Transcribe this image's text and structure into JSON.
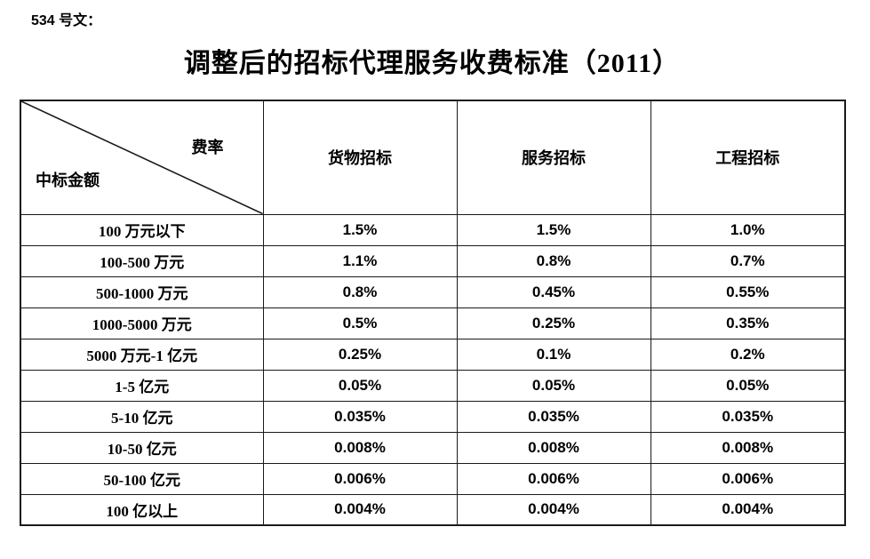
{
  "page": {
    "doc_label": "534 号文：",
    "title": "调整后的招标代理服务收费标准（2011）"
  },
  "table": {
    "corner": {
      "top_right": "费率",
      "bottom_left": "中标金额"
    },
    "columns": [
      "货物招标",
      "服务招标",
      "工程招标"
    ],
    "rows": [
      {
        "amount": "100 万元以下",
        "values": [
          "1.5%",
          "1.5%",
          "1.0%"
        ]
      },
      {
        "amount": "100-500 万元",
        "values": [
          "1.1%",
          "0.8%",
          "0.7%"
        ]
      },
      {
        "amount": "500-1000 万元",
        "values": [
          "0.8%",
          "0.45%",
          "0.55%"
        ]
      },
      {
        "amount": "1000-5000 万元",
        "values": [
          "0.5%",
          "0.25%",
          "0.35%"
        ]
      },
      {
        "amount": "5000 万元-1 亿元",
        "values": [
          "0.25%",
          "0.1%",
          "0.2%"
        ]
      },
      {
        "amount": "1-5 亿元",
        "values": [
          "0.05%",
          "0.05%",
          "0.05%"
        ]
      },
      {
        "amount": "5-10 亿元",
        "values": [
          "0.035%",
          "0.035%",
          "0.035%"
        ]
      },
      {
        "amount": "10-50 亿元",
        "values": [
          "0.008%",
          "0.008%",
          "0.008%"
        ]
      },
      {
        "amount": "50-100 亿元",
        "values": [
          "0.006%",
          "0.006%",
          "0.006%"
        ]
      },
      {
        "amount": "100 亿以上",
        "values": [
          "0.004%",
          "0.004%",
          "0.004%"
        ]
      }
    ]
  },
  "colors": {
    "text": "#000000",
    "border": "#1a1a1a",
    "background": "#ffffff"
  }
}
